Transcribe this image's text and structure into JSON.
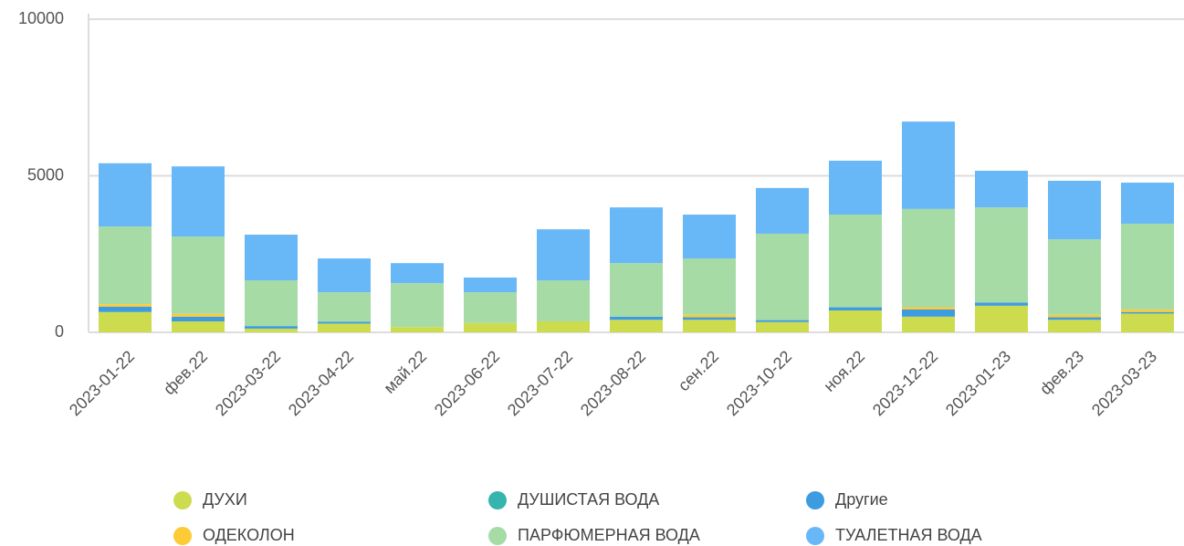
{
  "chart_data": {
    "type": "stacked_bar",
    "categories": [
      "2023-01-22",
      "фев.22",
      "2023-03-22",
      "2023-04-22",
      "май.22",
      "2023-06-22",
      "2023-07-22",
      "2023-08-22",
      "сен.22",
      "2023-10-22",
      "ноя.22",
      "2023-12-22",
      "2023-01-23",
      "фев.23",
      "2023-03-23"
    ],
    "series": [
      {
        "name": "ДУХИ",
        "color": "#cddc4f",
        "values": [
          650,
          350,
          120,
          280,
          170,
          300,
          350,
          400,
          400,
          330,
          700,
          500,
          850,
          400,
          600
        ]
      },
      {
        "name": "ДУШИСТАЯ ВОДА",
        "color": "#35b5ad",
        "values": [
          0,
          0,
          0,
          0,
          0,
          0,
          0,
          0,
          0,
          0,
          0,
          0,
          0,
          0,
          0
        ]
      },
      {
        "name": "Другие",
        "color": "#3d9be0",
        "values": [
          170,
          150,
          80,
          60,
          0,
          0,
          0,
          100,
          80,
          60,
          100,
          230,
          100,
          80,
          50
        ]
      },
      {
        "name": "ОДЕКОЛОН",
        "color": "#fdcb36",
        "values": [
          80,
          90,
          0,
          0,
          0,
          0,
          0,
          0,
          80,
          0,
          0,
          70,
          0,
          80,
          80
        ]
      },
      {
        "name": "ПАРФЮМЕРНАЯ ВОДА",
        "color": "#a6dba6",
        "values": [
          2480,
          2470,
          1460,
          940,
          1400,
          980,
          1310,
          1710,
          1800,
          2760,
          2960,
          3140,
          3040,
          2410,
          2740
        ]
      },
      {
        "name": "ТУАЛЕТНАЯ ВОДА",
        "color": "#68b8f8",
        "values": [
          2020,
          2240,
          1460,
          1080,
          640,
          470,
          1630,
          1780,
          1400,
          1460,
          1720,
          2790,
          1170,
          1870,
          1310
        ]
      }
    ],
    "ylim": [
      0,
      10000
    ],
    "yticks": [
      0,
      5000,
      10000
    ],
    "grid": true
  }
}
